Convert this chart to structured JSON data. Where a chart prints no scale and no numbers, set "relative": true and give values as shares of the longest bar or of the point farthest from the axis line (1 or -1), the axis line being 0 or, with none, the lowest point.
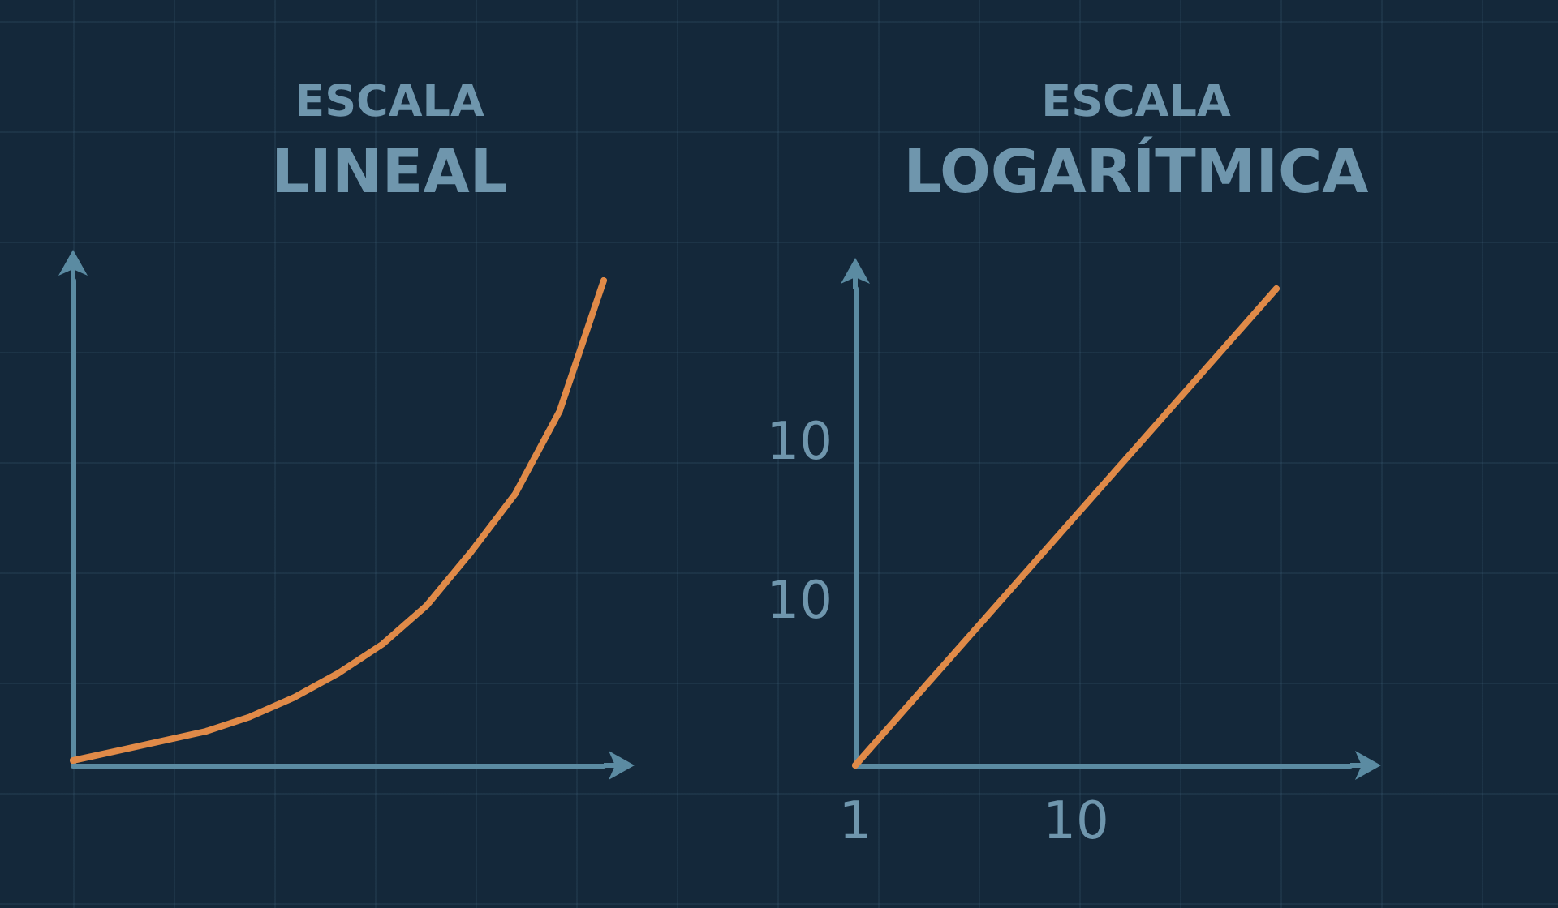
{
  "chart_data": [
    {
      "type": "line",
      "title": "ESCALA LINEAL",
      "relative": true,
      "categories": [
        null,
        null,
        null,
        null,
        null,
        null,
        null,
        null,
        null,
        null,
        null,
        null,
        null
      ],
      "values": [
        0.01,
        0.03,
        0.05,
        0.07,
        0.1,
        0.14,
        0.19,
        0.25,
        0.33,
        0.44,
        0.56,
        0.73,
        1
      ],
      "color": "#e08a48",
      "marker": "none",
      "line_style": "solid"
    },
    {
      "type": "line",
      "title": "ESCALA LOGARÍTMICA",
      "relative": true,
      "log": "x",
      "x": [
        1,
        81
      ],
      "values": [
        0,
        1
      ],
      "color": "#e08a48",
      "marker": "none",
      "line_style": "solid",
      "xlim": [
        1,
        175
      ],
      "xticks": [
        1,
        10
      ],
      "annotations": [
        "10",
        "10"
      ]
    }
  ]
}
